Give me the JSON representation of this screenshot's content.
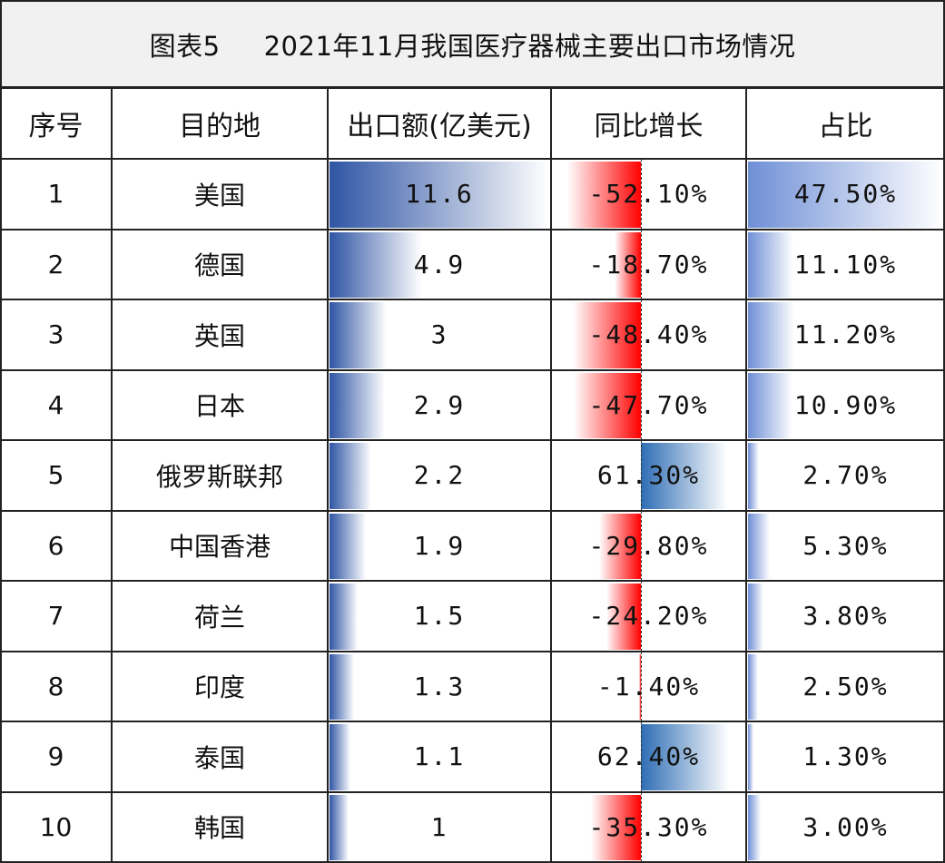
{
  "title": {
    "prefix": "图表5",
    "text": "2021年11月我国医疗器械主要出口市场情况"
  },
  "columns": [
    "序号",
    "目的地",
    "出口额(亿美元)",
    "同比增长",
    "占比"
  ],
  "rows": [
    {
      "index": "1",
      "destination": "美国",
      "export": "11.6",
      "growth": "-52.10%",
      "share": "47.50%"
    },
    {
      "index": "2",
      "destination": "德国",
      "export": "4.9",
      "growth": "-18.70%",
      "share": "11.10%"
    },
    {
      "index": "3",
      "destination": "英国",
      "export": "3",
      "growth": "-48.40%",
      "share": "11.20%"
    },
    {
      "index": "4",
      "destination": "日本",
      "export": "2.9",
      "growth": "-47.70%",
      "share": "10.90%"
    },
    {
      "index": "5",
      "destination": "俄罗斯联邦",
      "export": "2.2",
      "growth": "61.30%",
      "share": "2.70%"
    },
    {
      "index": "6",
      "destination": "中国香港",
      "export": "1.9",
      "growth": "-29.80%",
      "share": "5.30%"
    },
    {
      "index": "7",
      "destination": "荷兰",
      "export": "1.5",
      "growth": "-24.20%",
      "share": "3.80%"
    },
    {
      "index": "8",
      "destination": "印度",
      "export": "1.3",
      "growth": "-1.40%",
      "share": "2.50%"
    },
    {
      "index": "9",
      "destination": "泰国",
      "export": "1.1",
      "growth": "62.40%",
      "share": "1.30%"
    },
    {
      "index": "10",
      "destination": "韩国",
      "export": "1",
      "growth": "-35.30%",
      "share": "3.00%"
    }
  ],
  "chart_data": {
    "type": "table",
    "title": "2021年11月我国医疗器械主要出口市场情况",
    "categories": [
      "美国",
      "德国",
      "英国",
      "日本",
      "俄罗斯联邦",
      "中国香港",
      "荷兰",
      "印度",
      "泰国",
      "韩国"
    ],
    "series": [
      {
        "name": "出口额(亿美元)",
        "values": [
          11.6,
          4.9,
          3,
          2.9,
          2.2,
          1.9,
          1.5,
          1.3,
          1.1,
          1
        ]
      },
      {
        "name": "同比增长",
        "values": [
          -52.1,
          -18.7,
          -48.4,
          -47.7,
          61.3,
          -29.8,
          -24.2,
          -1.4,
          62.4,
          -35.3
        ]
      },
      {
        "name": "占比",
        "values": [
          47.5,
          11.1,
          11.2,
          10.9,
          2.7,
          5.3,
          3.8,
          2.5,
          1.3,
          3.0
        ]
      }
    ]
  },
  "colors": {
    "export_bar": "#2f55a4",
    "share_bar": "#6f8fd6",
    "negative_bar": "#ff0000",
    "positive_bar": "#2e6db4"
  }
}
